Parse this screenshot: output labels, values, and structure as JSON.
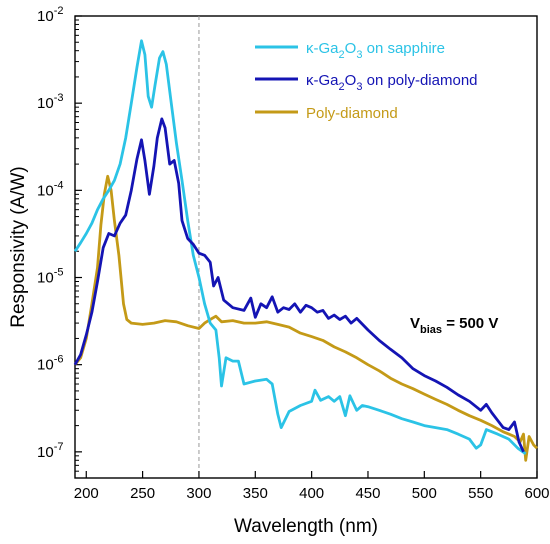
{
  "chart_data": {
    "type": "line",
    "xlabel": "Wavelength (nm)",
    "ylabel": "Responsivity (A/W)",
    "xlim": [
      190,
      600
    ],
    "ylim_log10": [
      -7.3,
      -2
    ],
    "y_scale": "log",
    "x_ticks": [
      200,
      250,
      300,
      350,
      400,
      450,
      500,
      550,
      600
    ],
    "x_tick_labels": [
      "200",
      "250",
      "300",
      "350",
      "400",
      "450",
      "500",
      "550",
      "600"
    ],
    "y_tick_exponents": [
      -7,
      -6,
      -5,
      -4,
      -3,
      -2
    ],
    "y_tick_base": "10",
    "reference_line_x": 300,
    "grid": false,
    "legend_position": "top-right",
    "annotation": {
      "main": "V",
      "sub": "bias",
      "rest": " = 500 V"
    },
    "series": [
      {
        "name": "κ-Ga2O3 on sapphire",
        "legend": {
          "a": "κ-Ga",
          "s1": "2",
          "b": "O",
          "s2": "3",
          "c": " on sapphire"
        },
        "color": "#2bc3e6",
        "points": [
          [
            190,
            2e-05
          ],
          [
            195,
            2.5e-05
          ],
          [
            200,
            3.2e-05
          ],
          [
            205,
            4.2e-05
          ],
          [
            210,
            6e-05
          ],
          [
            215,
            8e-05
          ],
          [
            220,
            0.0001
          ],
          [
            225,
            0.00013
          ],
          [
            230,
            0.0002
          ],
          [
            235,
            0.0004
          ],
          [
            240,
            0.001
          ],
          [
            245,
            0.0026
          ],
          [
            249,
            0.0052
          ],
          [
            252,
            0.0036
          ],
          [
            255,
            0.0012
          ],
          [
            258,
            0.0009
          ],
          [
            261,
            0.0016
          ],
          [
            265,
            0.0033
          ],
          [
            268,
            0.0039
          ],
          [
            271,
            0.0028
          ],
          [
            275,
            0.0011
          ],
          [
            280,
            0.00035
          ],
          [
            285,
            0.00013
          ],
          [
            290,
            4.5e-05
          ],
          [
            295,
            1.8e-05
          ],
          [
            300,
            1e-05
          ],
          [
            305,
            5e-06
          ],
          [
            310,
            3e-06
          ],
          [
            315,
            2.5e-06
          ],
          [
            318,
            1.2e-06
          ],
          [
            320,
            5.7e-07
          ],
          [
            324,
            1.2e-06
          ],
          [
            330,
            1.1e-06
          ],
          [
            335,
            1.1e-06
          ],
          [
            340,
            6e-07
          ],
          [
            350,
            6.5e-07
          ],
          [
            360,
            6.8e-07
          ],
          [
            365,
            6e-07
          ],
          [
            370,
            2.7e-07
          ],
          [
            373,
            1.9e-07
          ],
          [
            380,
            2.9e-07
          ],
          [
            390,
            3.4e-07
          ],
          [
            400,
            3.8e-07
          ],
          [
            403,
            5.1e-07
          ],
          [
            408,
            3.9e-07
          ],
          [
            415,
            4.3e-07
          ],
          [
            420,
            3.8e-07
          ],
          [
            425,
            4.3e-07
          ],
          [
            430,
            2.6e-07
          ],
          [
            434,
            4.4e-07
          ],
          [
            440,
            3e-07
          ],
          [
            445,
            3.4e-07
          ],
          [
            450,
            3.3e-07
          ],
          [
            460,
            3e-07
          ],
          [
            470,
            2.7e-07
          ],
          [
            480,
            2.4e-07
          ],
          [
            490,
            2.2e-07
          ],
          [
            500,
            2e-07
          ],
          [
            510,
            1.9e-07
          ],
          [
            520,
            1.8e-07
          ],
          [
            530,
            1.6e-07
          ],
          [
            540,
            1.4e-07
          ],
          [
            546,
            1.1e-07
          ],
          [
            550,
            1.2e-07
          ],
          [
            555,
            1.8e-07
          ],
          [
            565,
            1.6e-07
          ],
          [
            575,
            1.4e-07
          ],
          [
            583,
            1.1e-07
          ],
          [
            590,
            9.5e-08
          ]
        ]
      },
      {
        "name": "κ-Ga2O3 on poly-diamond",
        "legend": {
          "a": "κ-Ga",
          "s1": "2",
          "b": "O",
          "s2": "3",
          "c": " on poly-diamond"
        },
        "color": "#1414b4",
        "points": [
          [
            190,
            1e-06
          ],
          [
            195,
            1.3e-06
          ],
          [
            200,
            2.2e-06
          ],
          [
            205,
            4e-06
          ],
          [
            210,
            9e-06
          ],
          [
            215,
            2.2e-05
          ],
          [
            220,
            3.2e-05
          ],
          [
            225,
            3e-05
          ],
          [
            230,
            4.2e-05
          ],
          [
            235,
            5.2e-05
          ],
          [
            240,
            0.0001
          ],
          [
            245,
            0.00023
          ],
          [
            249,
            0.00038
          ],
          [
            252,
            0.00022
          ],
          [
            256,
            9e-05
          ],
          [
            260,
            0.00019
          ],
          [
            263,
            0.0004
          ],
          [
            267,
            0.00066
          ],
          [
            270,
            0.00052
          ],
          [
            274,
            0.0002
          ],
          [
            278,
            0.00022
          ],
          [
            282,
            0.00012
          ],
          [
            285,
            4.5e-05
          ],
          [
            290,
            2.8e-05
          ],
          [
            295,
            2.4e-05
          ],
          [
            300,
            1.9e-05
          ],
          [
            305,
            1.8e-05
          ],
          [
            310,
            1.5e-05
          ],
          [
            313,
            8e-06
          ],
          [
            317,
            1e-05
          ],
          [
            322,
            5.5e-06
          ],
          [
            330,
            4.5e-06
          ],
          [
            340,
            4.2e-06
          ],
          [
            346,
            5.8e-06
          ],
          [
            350,
            3.5e-06
          ],
          [
            355,
            5e-06
          ],
          [
            360,
            4.5e-06
          ],
          [
            365,
            6e-06
          ],
          [
            370,
            4e-06
          ],
          [
            375,
            4.5e-06
          ],
          [
            380,
            4.3e-06
          ],
          [
            385,
            5e-06
          ],
          [
            390,
            4e-06
          ],
          [
            395,
            4.8e-06
          ],
          [
            400,
            4.5e-06
          ],
          [
            405,
            4e-06
          ],
          [
            410,
            4.2e-06
          ],
          [
            415,
            3.4e-06
          ],
          [
            420,
            3.7e-06
          ],
          [
            425,
            3.3e-06
          ],
          [
            430,
            3.6e-06
          ],
          [
            435,
            3e-06
          ],
          [
            440,
            3.4e-06
          ],
          [
            450,
            2.5e-06
          ],
          [
            460,
            1.9e-06
          ],
          [
            470,
            1.5e-06
          ],
          [
            480,
            1.2e-06
          ],
          [
            490,
            9e-07
          ],
          [
            500,
            7.5e-07
          ],
          [
            510,
            6.5e-07
          ],
          [
            520,
            5.5e-07
          ],
          [
            530,
            4.5e-07
          ],
          [
            540,
            3.8e-07
          ],
          [
            550,
            3e-07
          ],
          [
            555,
            3.5e-07
          ],
          [
            560,
            2.8e-07
          ],
          [
            565,
            2.3e-07
          ],
          [
            570,
            1.9e-07
          ],
          [
            575,
            1.8e-07
          ],
          [
            580,
            2.2e-07
          ],
          [
            584,
            1.3e-07
          ],
          [
            588,
            1e-07
          ]
        ]
      },
      {
        "name": "Poly-diamond",
        "color": "#c49a17",
        "points": [
          [
            190,
            1e-06
          ],
          [
            195,
            1.2e-06
          ],
          [
            200,
            2e-06
          ],
          [
            205,
            5e-06
          ],
          [
            210,
            1.3e-05
          ],
          [
            213,
            4e-05
          ],
          [
            216,
            9e-05
          ],
          [
            219,
            0.000145
          ],
          [
            222,
            0.0001
          ],
          [
            225,
            4.5e-05
          ],
          [
            229,
            1.8e-05
          ],
          [
            233,
            5e-06
          ],
          [
            236,
            3.3e-06
          ],
          [
            240,
            3e-06
          ],
          [
            250,
            2.9e-06
          ],
          [
            260,
            3e-06
          ],
          [
            270,
            3.2e-06
          ],
          [
            280,
            3.1e-06
          ],
          [
            290,
            2.8e-06
          ],
          [
            300,
            2.6e-06
          ],
          [
            305,
            3e-06
          ],
          [
            310,
            3.3e-06
          ],
          [
            315,
            3.6e-06
          ],
          [
            320,
            3.1e-06
          ],
          [
            330,
            3.2e-06
          ],
          [
            340,
            3e-06
          ],
          [
            350,
            3e-06
          ],
          [
            360,
            3.1e-06
          ],
          [
            370,
            2.9e-06
          ],
          [
            380,
            2.7e-06
          ],
          [
            390,
            2.3e-06
          ],
          [
            400,
            2.1e-06
          ],
          [
            410,
            1.9e-06
          ],
          [
            420,
            1.6e-06
          ],
          [
            430,
            1.4e-06
          ],
          [
            440,
            1.2e-06
          ],
          [
            450,
            1e-06
          ],
          [
            460,
            8.5e-07
          ],
          [
            470,
            7e-07
          ],
          [
            480,
            6e-07
          ],
          [
            490,
            5.3e-07
          ],
          [
            500,
            4.6e-07
          ],
          [
            510,
            4e-07
          ],
          [
            520,
            3.5e-07
          ],
          [
            530,
            3e-07
          ],
          [
            540,
            2.6e-07
          ],
          [
            550,
            2.3e-07
          ],
          [
            560,
            2e-07
          ],
          [
            570,
            1.7e-07
          ],
          [
            575,
            1.6e-07
          ],
          [
            580,
            1.5e-07
          ],
          [
            585,
            1.3e-07
          ],
          [
            588,
            1.6e-07
          ],
          [
            590,
            8e-08
          ],
          [
            593,
            1.5e-07
          ],
          [
            597,
            1.2e-07
          ],
          [
            600,
            1.1e-07
          ]
        ]
      }
    ]
  }
}
